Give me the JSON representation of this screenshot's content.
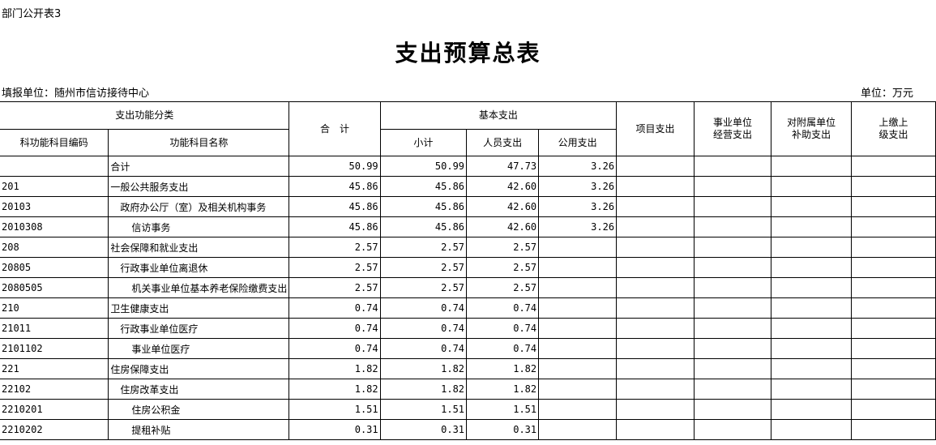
{
  "doc_code": "部门公开表3",
  "title": "支出预算总表",
  "org": "填报单位：随州市信访接待中心",
  "unit": "单位：万元",
  "headers": {
    "func_class": "支出功能分类",
    "code": "科功能科目编码",
    "name": "功能科目名称",
    "total": "合　计",
    "basic": "基本支出",
    "subtotal": "小计",
    "personnel": "人员支出",
    "public": "公用支出",
    "project": "项目支出",
    "business": "事业单位\n经营支出",
    "subsidy": "对附属单位\n补助支出",
    "upper": "上缴上\n级支出"
  },
  "rows": [
    {
      "code": "",
      "name": "合计",
      "level": 0,
      "total": "50.99",
      "subtotal": "50.99",
      "personnel": "47.73",
      "public": "3.26"
    },
    {
      "code": "201",
      "name": "一般公共服务支出",
      "level": 0,
      "total": "45.86",
      "subtotal": "45.86",
      "personnel": "42.60",
      "public": "3.26"
    },
    {
      "code": "20103",
      "name": "政府办公厅（室）及相关机构事务",
      "level": 1,
      "total": "45.86",
      "subtotal": "45.86",
      "personnel": "42.60",
      "public": "3.26"
    },
    {
      "code": "2010308",
      "name": "信访事务",
      "level": 2,
      "total": "45.86",
      "subtotal": "45.86",
      "personnel": "42.60",
      "public": "3.26"
    },
    {
      "code": "208",
      "name": "社会保障和就业支出",
      "level": 0,
      "total": "2.57",
      "subtotal": "2.57",
      "personnel": "2.57",
      "public": ""
    },
    {
      "code": "20805",
      "name": "行政事业单位离退休",
      "level": 1,
      "total": "2.57",
      "subtotal": "2.57",
      "personnel": "2.57",
      "public": ""
    },
    {
      "code": "2080505",
      "name": "机关事业单位基本养老保险缴费支出",
      "level": 2,
      "total": "2.57",
      "subtotal": "2.57",
      "personnel": "2.57",
      "public": ""
    },
    {
      "code": "210",
      "name": "卫生健康支出",
      "level": 0,
      "total": "0.74",
      "subtotal": "0.74",
      "personnel": "0.74",
      "public": ""
    },
    {
      "code": "21011",
      "name": "行政事业单位医疗",
      "level": 1,
      "total": "0.74",
      "subtotal": "0.74",
      "personnel": "0.74",
      "public": ""
    },
    {
      "code": "2101102",
      "name": "事业单位医疗",
      "level": 2,
      "total": "0.74",
      "subtotal": "0.74",
      "personnel": "0.74",
      "public": ""
    },
    {
      "code": "221",
      "name": "住房保障支出",
      "level": 0,
      "total": "1.82",
      "subtotal": "1.82",
      "personnel": "1.82",
      "public": ""
    },
    {
      "code": "22102",
      "name": "住房改革支出",
      "level": 1,
      "total": "1.82",
      "subtotal": "1.82",
      "personnel": "1.82",
      "public": ""
    },
    {
      "code": "2210201",
      "name": "住房公积金",
      "level": 2,
      "total": "1.51",
      "subtotal": "1.51",
      "personnel": "1.51",
      "public": ""
    },
    {
      "code": "2210202",
      "name": "提租补贴",
      "level": 2,
      "total": "0.31",
      "subtotal": "0.31",
      "personnel": "0.31",
      "public": ""
    }
  ]
}
